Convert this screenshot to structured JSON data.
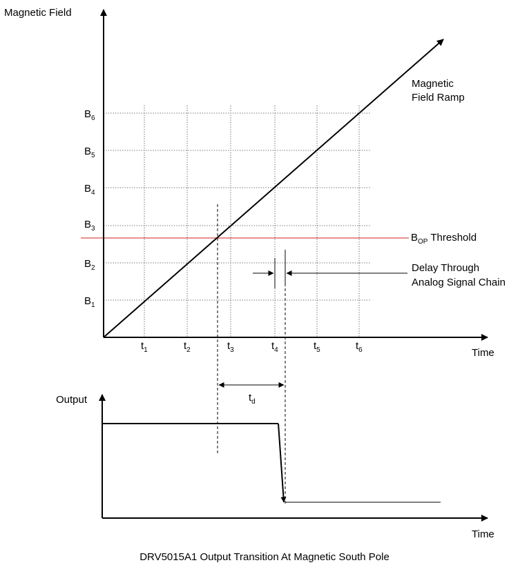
{
  "colors": {
    "threshold_line": "#d01c1c",
    "ink": "#000000",
    "grid": "#555555"
  },
  "top_plot": {
    "y_axis_label": "Magnetic Field",
    "x_axis_label": "Time",
    "b_levels": [
      {
        "main": "B",
        "sub": "1"
      },
      {
        "main": "B",
        "sub": "2"
      },
      {
        "main": "B",
        "sub": "3"
      },
      {
        "main": "B",
        "sub": "4"
      },
      {
        "main": "B",
        "sub": "5"
      },
      {
        "main": "B",
        "sub": "6"
      }
    ],
    "t_ticks": [
      {
        "main": "t",
        "sub": "1"
      },
      {
        "main": "t",
        "sub": "2"
      },
      {
        "main": "t",
        "sub": "3"
      },
      {
        "main": "t",
        "sub": "4"
      },
      {
        "main": "t",
        "sub": "5"
      },
      {
        "main": "t",
        "sub": "6"
      }
    ],
    "ramp_label_line1": "Magnetic",
    "ramp_label_line2": "Field Ramp",
    "threshold_label": {
      "main": "B",
      "sub": "OP",
      "rest": " Threshold"
    },
    "delay_label_line1": "Delay Through",
    "delay_label_line2": "Analog Signal Chain"
  },
  "bottom_plot": {
    "y_axis_label": "Output",
    "x_axis_label": "Time",
    "td_label": {
      "main": "t",
      "sub": "d"
    }
  },
  "caption": "DRV5015A1 Output Transition At Magnetic South Pole"
}
